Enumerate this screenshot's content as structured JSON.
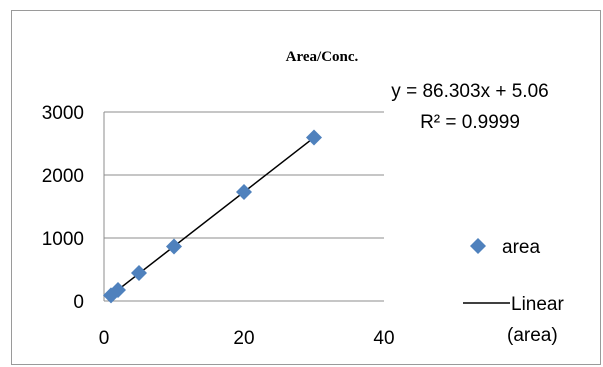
{
  "chart_data": {
    "type": "scatter",
    "title": "Area/Conc.",
    "xlim": [
      0,
      40
    ],
    "ylim": [
      0,
      3000
    ],
    "x_ticks": [
      "0",
      "20",
      "40"
    ],
    "y_ticks": [
      "0",
      "1000",
      "2000",
      "3000"
    ],
    "grid": "horizontal",
    "series": [
      {
        "name": "area",
        "marker": "diamond",
        "color": "#4F81BD",
        "x": [
          1,
          2,
          5,
          10,
          20,
          30
        ],
        "y": [
          90,
          175,
          445,
          865,
          1730,
          2595
        ]
      }
    ],
    "trendline": {
      "name": "Linear (area)",
      "slope": 86.303,
      "intercept": 5.06,
      "x_range": [
        1,
        30
      ],
      "color": "#000000"
    },
    "annotations": {
      "equation": "y = 86.303x + 5.06",
      "r_squared": "R² = 0.9999"
    },
    "legend": {
      "position": "right",
      "entries": [
        "area",
        "Linear",
        "(area)"
      ]
    }
  }
}
